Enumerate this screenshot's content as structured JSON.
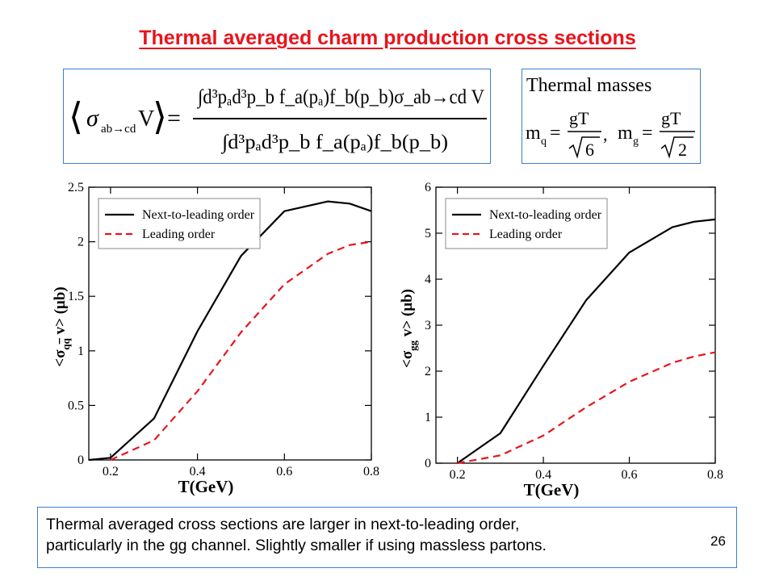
{
  "slide": {
    "title": "Thermal averaged charm production cross sections",
    "formula": {
      "lhs_sigma": "σ",
      "lhs_sub": "ab→cd",
      "lhs_v": "V",
      "numerator": "∫d³pₐd³p_b f_a(pₐ)f_b(p_b)σ_ab→cd V",
      "denominator": "∫d³pₐd³p_b f_a(pₐ)f_b(p_b)"
    },
    "masses": {
      "heading": "Thermal masses",
      "mq_label": "m",
      "mq_sub": "q",
      "mg_label": "m",
      "mg_sub": "g",
      "numerator": "gT",
      "mq_root": "6",
      "mg_root": "2"
    },
    "note": {
      "line1": "Thermal averaged cross sections are larger in next-to-leading order,",
      "line2": "particularly in the gg channel. Slightly smaller if using massless partons."
    },
    "page_number": "26"
  },
  "chart_data": [
    {
      "type": "line",
      "xlabel": "T(GeV)",
      "ylabel": "<σ_qq̄ v> (μb)",
      "ylabel_parts": {
        "pre": "<σ",
        "sub": "q",
        "subbar": "q",
        "post": "v> (μb)"
      },
      "xlim": [
        0.15,
        0.8
      ],
      "ylim": [
        0,
        2.5
      ],
      "xticks": [
        0.2,
        0.4,
        0.6,
        0.8
      ],
      "xtick_labels": [
        "0.2",
        "0.4",
        "0.6",
        "0.8"
      ],
      "yticks": [
        0,
        0.5,
        1,
        1.5,
        2,
        2.5
      ],
      "ytick_labels": [
        "0",
        "0.5",
        "1",
        "1.5",
        "2",
        "2.5"
      ],
      "legend_position": "top-left",
      "series": [
        {
          "name": "Next-to-leading order",
          "color": "#000000",
          "style": "solid",
          "x": [
            0.15,
            0.2,
            0.3,
            0.4,
            0.5,
            0.6,
            0.7,
            0.75,
            0.8
          ],
          "y": [
            0.0,
            0.02,
            0.38,
            1.18,
            1.87,
            2.28,
            2.37,
            2.35,
            2.28
          ]
        },
        {
          "name": "Leading order",
          "color": "#e8141c",
          "style": "dashed",
          "x": [
            0.2,
            0.3,
            0.4,
            0.5,
            0.6,
            0.7,
            0.75,
            0.8
          ],
          "y": [
            0.0,
            0.18,
            0.63,
            1.17,
            1.61,
            1.89,
            1.97,
            2.0
          ]
        }
      ]
    },
    {
      "type": "line",
      "xlabel": "T(GeV)",
      "ylabel": "<σ_gg v> (μb)",
      "ylabel_parts": {
        "pre": "<σ",
        "sub": "gg",
        "subbar": "",
        "post": "v> (μb)"
      },
      "xlim": [
        0.15,
        0.8
      ],
      "ylim": [
        0,
        6
      ],
      "xticks": [
        0.2,
        0.4,
        0.6,
        0.8
      ],
      "xtick_labels": [
        "0.2",
        "0.4",
        "0.6",
        "0.8"
      ],
      "yticks": [
        0,
        1,
        2,
        3,
        4,
        5,
        6
      ],
      "ytick_labels": [
        "0",
        "1",
        "2",
        "3",
        "4",
        "5",
        "6"
      ],
      "legend_position": "top-left",
      "series": [
        {
          "name": "Next-to-leading order",
          "color": "#000000",
          "style": "solid",
          "x": [
            0.2,
            0.3,
            0.4,
            0.5,
            0.6,
            0.7,
            0.75,
            0.8
          ],
          "y": [
            0.0,
            0.65,
            2.12,
            3.55,
            4.58,
            5.13,
            5.25,
            5.3
          ]
        },
        {
          "name": "Leading order",
          "color": "#e8141c",
          "style": "dashed",
          "x": [
            0.2,
            0.3,
            0.4,
            0.5,
            0.6,
            0.7,
            0.75,
            0.8
          ],
          "y": [
            0.0,
            0.17,
            0.6,
            1.22,
            1.77,
            2.18,
            2.32,
            2.41
          ]
        }
      ]
    }
  ]
}
